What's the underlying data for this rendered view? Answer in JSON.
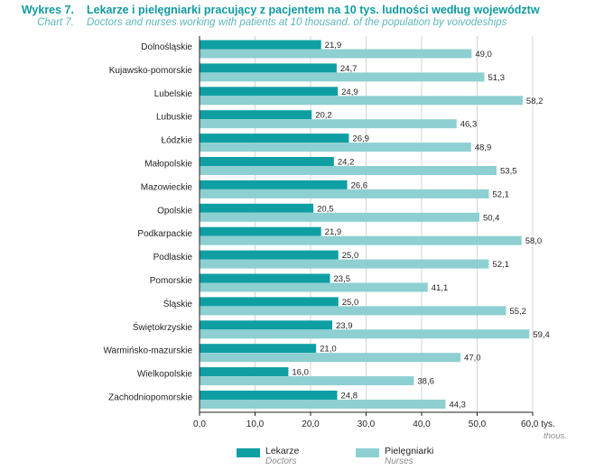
{
  "header": {
    "number_pl": "Wykres 7.",
    "number_en": "Chart 7.",
    "title_pl": "Lekarze i pielęgniarki pracujący z pacjentem na 10 tys. ludności według województw",
    "title_en": "Doctors and nurses working with patients at 10 thousand. of the population by voivodeships"
  },
  "colors": {
    "doctors": "#0f9fa3",
    "nurses": "#8ecfd1",
    "title": "#109aa0",
    "subtitle": "#5cb7bb"
  },
  "chart_data": {
    "type": "bar",
    "orientation": "horizontal",
    "categories": [
      "Dolnośląskie",
      "Kujawsko-pomorskie",
      "Lubelskie",
      "Lubuskie",
      "Łódzkie",
      "Małopolskie",
      "Mazowieckie",
      "Opolskie",
      "Podkarpackie",
      "Podlaskie",
      "Pomorskie",
      "Śląskie",
      "Świętokrzyskie",
      "Warmińsko-mazurskie",
      "Wielkopolskie",
      "Zachodniopomorskie"
    ],
    "series": [
      {
        "name": "Lekarze",
        "name_en": "Doctors",
        "values": [
          21.9,
          24.7,
          24.9,
          20.2,
          26.9,
          24.2,
          26.6,
          20.5,
          21.9,
          25.0,
          23.5,
          25.0,
          23.9,
          21.0,
          16.0,
          24.8
        ],
        "labels": [
          "21,9",
          "24,7",
          "24,9",
          "20,2",
          "26,9",
          "24,2",
          "26,6",
          "20,5",
          "21,9",
          "25,0",
          "23,5",
          "25,0",
          "23,9",
          "21,0",
          "16,0",
          "24,8"
        ]
      },
      {
        "name": "Pielęgniarki",
        "name_en": "Nurses",
        "values": [
          49.0,
          51.3,
          58.2,
          46.3,
          48.9,
          53.5,
          52.1,
          50.4,
          58.0,
          52.1,
          41.1,
          55.2,
          59.4,
          47.0,
          38.6,
          44.3
        ],
        "labels": [
          "49,0",
          "51,3",
          "58,2",
          "46,3",
          "48,9",
          "53,5",
          "52,1",
          "50,4",
          "58,0",
          "52,1",
          "41,1",
          "55,2",
          "59,4",
          "47,0",
          "38,6",
          "44,3"
        ]
      }
    ],
    "xlim": [
      0,
      60
    ],
    "ticks": [
      0,
      10,
      20,
      30,
      40,
      50,
      60
    ],
    "tick_labels": [
      "0,0",
      "10,0",
      "20,0",
      "30,0",
      "40,0",
      "50,0",
      "60,0 tys."
    ],
    "unit_en": "thous.",
    "grid": true,
    "legend_position": "bottom"
  }
}
